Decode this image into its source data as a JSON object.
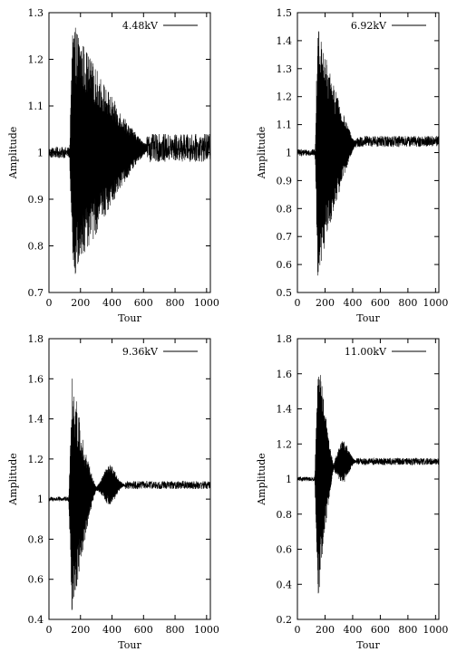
{
  "chart_data": [
    {
      "type": "line",
      "legend": "4.48kV",
      "legend_position": "top-right",
      "xlabel": "Tour",
      "ylabel": "Amplitude",
      "xlim": [
        0,
        1024
      ],
      "ylim": [
        0.7,
        1.3
      ],
      "xticks": [
        0,
        200,
        400,
        600,
        800,
        1000
      ],
      "yticks": [
        0.7,
        0.8,
        0.9,
        1.0,
        1.1,
        1.2,
        1.3
      ],
      "ytick_labels": [
        "0.7",
        "0.8",
        "0.9",
        "1",
        "1.1",
        "1.2",
        "1.3"
      ],
      "grid": false,
      "signal": {
        "baseline": 1.0,
        "baseline_noise": 0.012,
        "onset": 130,
        "peak_at": 150,
        "peak_amplitude": 0.27,
        "decay_end": 620,
        "settled_level": 1.01,
        "settled_noise": 0.03
      }
    },
    {
      "type": "line",
      "legend": "6.92kV",
      "legend_position": "top-right",
      "xlabel": "Tour",
      "ylabel": "Amplitude",
      "xlim": [
        0,
        1024
      ],
      "ylim": [
        0.5,
        1.5
      ],
      "xticks": [
        0,
        200,
        400,
        600,
        800,
        1000
      ],
      "yticks": [
        0.5,
        0.6,
        0.7,
        0.8,
        0.9,
        1.0,
        1.1,
        1.2,
        1.3,
        1.4,
        1.5
      ],
      "ytick_labels": [
        "0.5",
        "0.6",
        "0.7",
        "0.8",
        "0.9",
        "1",
        "1.1",
        "1.2",
        "1.3",
        "1.4",
        "1.5"
      ],
      "grid": false,
      "signal": {
        "baseline": 1.0,
        "baseline_noise": 0.012,
        "onset": 128,
        "peak_at": 145,
        "peak_amplitude": 0.44,
        "decay_end": 420,
        "settled_level": 1.04,
        "settled_noise": 0.02
      }
    },
    {
      "type": "line",
      "legend": "9.36kV",
      "legend_position": "top-right",
      "xlabel": "Tour",
      "ylabel": "Amplitude",
      "xlim": [
        0,
        1024
      ],
      "ylim": [
        0.4,
        1.8
      ],
      "xticks": [
        0,
        200,
        400,
        600,
        800,
        1000
      ],
      "yticks": [
        0.4,
        0.6,
        0.8,
        1.0,
        1.2,
        1.4,
        1.6,
        1.8
      ],
      "ytick_labels": [
        "0.4",
        "0.6",
        "0.8",
        "1",
        "1.2",
        "1.4",
        "1.6",
        "1.8"
      ],
      "grid": false,
      "signal": {
        "baseline": 1.0,
        "baseline_noise": 0.012,
        "onset": 125,
        "peak_at": 145,
        "peak_amplitude": 0.6,
        "decay_end": 300,
        "revival_at": 385,
        "revival_amplitude": 0.1,
        "settled_level": 1.07,
        "settled_noise": 0.02
      }
    },
    {
      "type": "line",
      "legend": "11.00kV",
      "legend_position": "top-right",
      "xlabel": "Tour",
      "ylabel": "Amplitude",
      "xlim": [
        0,
        1024
      ],
      "ylim": [
        0.2,
        1.8
      ],
      "xticks": [
        0,
        200,
        400,
        600,
        800,
        1000
      ],
      "yticks": [
        0.2,
        0.4,
        0.6,
        0.8,
        1.0,
        1.2,
        1.4,
        1.6,
        1.8
      ],
      "ytick_labels": [
        "0.2",
        "0.4",
        "0.6",
        "0.8",
        "1",
        "1.2",
        "1.4",
        "1.6",
        "1.8"
      ],
      "grid": false,
      "signal": {
        "baseline": 1.0,
        "baseline_noise": 0.012,
        "onset": 125,
        "peak_at": 150,
        "peak_amplitude": 0.7,
        "decay_end": 265,
        "revival_at": 330,
        "revival_amplitude": 0.12,
        "settled_level": 1.1,
        "settled_noise": 0.02
      }
    }
  ]
}
